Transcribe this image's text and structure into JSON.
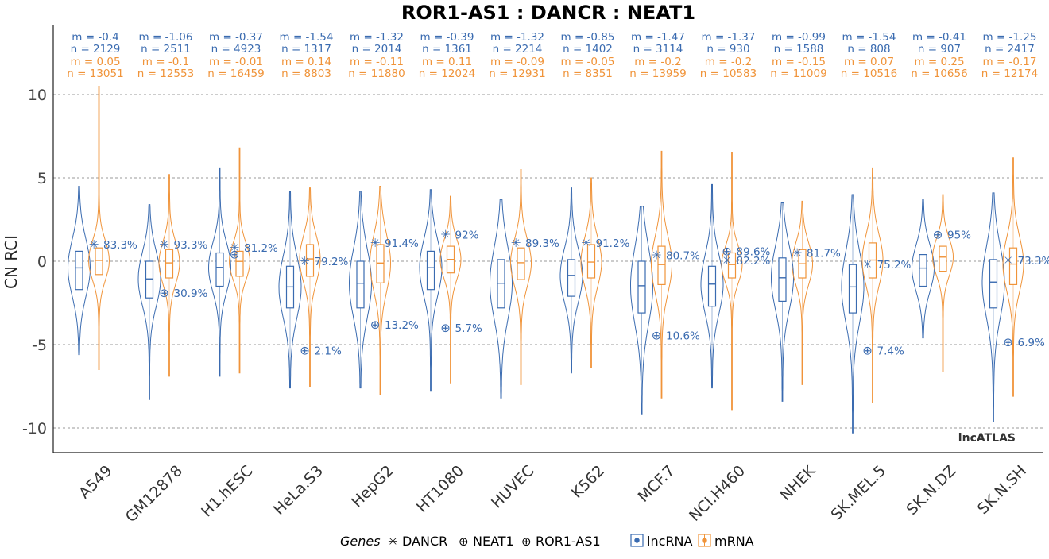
{
  "chart_data": {
    "type": "violin",
    "title": "ROR1-AS1 : DANCR : NEAT1",
    "xlabel": "",
    "ylabel": "CN RCI",
    "ylim": [
      -11,
      11
    ],
    "yticks": [
      10,
      5,
      0,
      -5,
      -10
    ],
    "ytick_labels": [
      "10",
      "5",
      "0",
      "-5",
      "-10"
    ],
    "grid": "horizontal dashed",
    "watermark": "lncATLAS",
    "categories": [
      "A549",
      "GM12878",
      "H1.hESC",
      "HeLa.S3",
      "HepG2",
      "HT1080",
      "HUVEC",
      "K562",
      "MCF.7",
      "NCI.H460",
      "NHEK",
      "SK.MEL.5",
      "SK.N.DZ",
      "SK.N.SH"
    ],
    "series": [
      {
        "name": "lncRNA",
        "color": "#3a6bb0",
        "m_labels": [
          "m = -0.4",
          "m = -1.06",
          "m = -0.37",
          "m = -1.54",
          "m = -1.32",
          "m = -0.39",
          "m = -1.32",
          "m = -0.85",
          "m = -1.47",
          "m = -1.37",
          "m = -0.99",
          "m = -1.54",
          "m = -0.41",
          "m = -1.25"
        ],
        "n_labels": [
          "n = 2129",
          "n = 2511",
          "n = 4923",
          "n = 1317",
          "n = 2014",
          "n = 1361",
          "n = 2214",
          "n = 1402",
          "n = 3114",
          "n = 930",
          "n = 1588",
          "n = 808",
          "n = 907",
          "n = 2417"
        ],
        "median": [
          -0.4,
          -1.06,
          -0.37,
          -1.54,
          -1.32,
          -0.39,
          -1.32,
          -0.85,
          -1.47,
          -1.37,
          -0.99,
          -1.54,
          -0.41,
          -1.25
        ],
        "q1": [
          -1.7,
          -2.2,
          -1.5,
          -2.8,
          -2.8,
          -1.7,
          -2.8,
          -2.1,
          -3.1,
          -2.7,
          -2.4,
          -3.1,
          -1.5,
          -2.8
        ],
        "q3": [
          0.6,
          0.0,
          0.5,
          -0.3,
          0.0,
          0.6,
          0.1,
          0.1,
          0.0,
          -0.3,
          0.2,
          -0.2,
          0.4,
          0.1
        ],
        "min": [
          -5.6,
          -8.3,
          -6.9,
          -7.6,
          -7.6,
          -7.8,
          -8.2,
          -6.7,
          -9.2,
          -7.6,
          -8.4,
          -10.3,
          -4.6,
          -9.6
        ],
        "max": [
          4.5,
          3.4,
          5.6,
          4.2,
          4.2,
          4.3,
          3.7,
          4.4,
          3.3,
          4.6,
          3.5,
          4.0,
          3.7,
          4.1
        ]
      },
      {
        "name": "mRNA",
        "color": "#f0943a",
        "m_labels": [
          "m = 0.05",
          "m = -0.1",
          "m = -0.01",
          "m = 0.14",
          "m = -0.11",
          "m = 0.11",
          "m = -0.09",
          "m = -0.05",
          "m = -0.2",
          "m = -0.2",
          "m = -0.15",
          "m = 0.07",
          "m = 0.25",
          "m = -0.17"
        ],
        "n_labels": [
          "n = 13051",
          "n = 12553",
          "n = 16459",
          "n = 8803",
          "n = 11880",
          "n = 12024",
          "n = 12931",
          "n = 8351",
          "n = 13959",
          "n = 10583",
          "n = 11009",
          "n = 10516",
          "n = 10656",
          "n = 12174"
        ],
        "median": [
          0.05,
          -0.1,
          -0.01,
          0.14,
          -0.11,
          0.11,
          -0.09,
          -0.05,
          -0.2,
          -0.2,
          -0.15,
          0.07,
          0.25,
          -0.17
        ],
        "q1": [
          -0.8,
          -1.0,
          -0.9,
          -0.9,
          -1.3,
          -0.7,
          -1.1,
          -1.0,
          -1.4,
          -1.0,
          -1.0,
          -1.0,
          -0.6,
          -1.4
        ],
        "q3": [
          0.8,
          0.7,
          0.6,
          1.0,
          1.0,
          0.9,
          0.8,
          1.0,
          0.9,
          0.5,
          0.7,
          1.1,
          0.9,
          0.8
        ],
        "min": [
          -6.5,
          -6.9,
          -6.7,
          -7.5,
          -8.0,
          -7.3,
          -7.4,
          -6.4,
          -8.2,
          -8.9,
          -7.4,
          -8.5,
          -6.6,
          -8.1
        ],
        "max": [
          10.5,
          5.2,
          6.8,
          4.4,
          4.5,
          3.9,
          5.5,
          5.0,
          6.6,
          6.5,
          3.6,
          5.6,
          4.0,
          6.2
        ]
      }
    ],
    "genes": [
      {
        "name": "DANCR",
        "symbol": "✳",
        "values": [
          1.0,
          1.0,
          0.8,
          0.0,
          1.1,
          1.6,
          1.1,
          1.1,
          0.35,
          0.05,
          0.5,
          -0.2,
          null,
          0.05
        ],
        "labels": [
          "83.3%",
          "93.3%",
          "81.2%",
          "79.2%",
          "91.4%",
          "92%",
          "89.3%",
          "91.2%",
          "80.7%",
          "82.2%",
          "81.7%",
          "75.2%",
          "",
          "73.3%"
        ]
      },
      {
        "name": "NEAT1",
        "symbol": "⊕",
        "values": [
          null,
          -1.9,
          null,
          -5.35,
          -3.8,
          -4.0,
          null,
          null,
          -4.45,
          0.6,
          null,
          -5.35,
          null,
          -4.85
        ],
        "labels": [
          "",
          "30.9%",
          "",
          "2.1%",
          "13.2%",
          "5.7%",
          "",
          "",
          "10.6%",
          "89.6%",
          "",
          "7.4%",
          "",
          "6.9%"
        ]
      },
      {
        "name": "ROR1-AS1",
        "symbol": "⊕",
        "values": [
          null,
          null,
          0.4,
          null,
          null,
          null,
          null,
          null,
          null,
          null,
          null,
          null,
          1.6,
          null
        ],
        "labels": [
          "",
          "",
          "",
          "",
          "",
          "",
          "",
          "",
          "",
          "",
          "",
          "",
          "95%",
          ""
        ]
      }
    ],
    "legend": {
      "position": "bottom",
      "genes_title": "Genes",
      "items": [
        {
          "symbol": "✳",
          "label": "DANCR"
        },
        {
          "symbol": "⊕",
          "label": "NEAT1"
        },
        {
          "symbol": "⊕",
          "label": "ROR1-AS1"
        }
      ],
      "fill_items": [
        {
          "label": "lncRNA",
          "color": "#3a6bb0"
        },
        {
          "label": "mRNA",
          "color": "#f0943a"
        }
      ]
    }
  }
}
